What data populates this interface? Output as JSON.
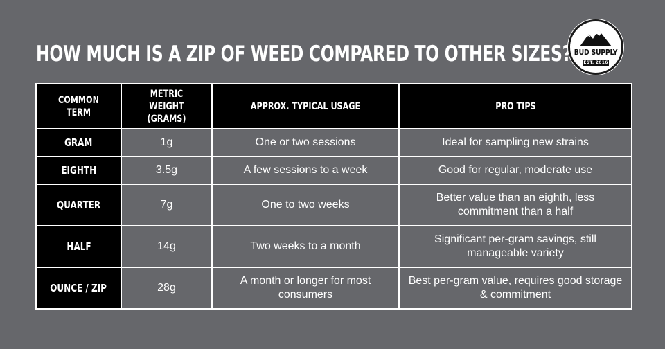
{
  "title": "How much is a zip of weed compared to other sizes?",
  "logo": {
    "brand": "BUD SUPPLY",
    "established": "EST. 2016",
    "icon": "mountain-icon"
  },
  "table": {
    "headers": [
      "Common Term",
      "Metric Weight (Grams)",
      "Approx. Typical Usage",
      "Pro Tips"
    ],
    "rows": [
      {
        "term": "Gram",
        "weight": "1g",
        "usage": "One or two sessions",
        "tip": "Ideal for sampling new strains"
      },
      {
        "term": "Eighth",
        "weight": "3.5g",
        "usage": "A few sessions to a week",
        "tip": "Good for regular, moderate use"
      },
      {
        "term": "Quarter",
        "weight": "7g",
        "usage": "One to two weeks",
        "tip": "Better value than an eighth, less commitment than a half"
      },
      {
        "term": "Half",
        "weight": "14g",
        "usage": "Two weeks to a month",
        "tip": "Significant per-gram savings, still manageable variety"
      },
      {
        "term": "Ounce / Zip",
        "weight": "28g",
        "usage": "A month or longer for most consumers",
        "tip": "Best per-gram value, requires good storage & commitment"
      }
    ]
  },
  "colors": {
    "background": "#66676b",
    "header": "#000000",
    "text": "#ffffff"
  }
}
